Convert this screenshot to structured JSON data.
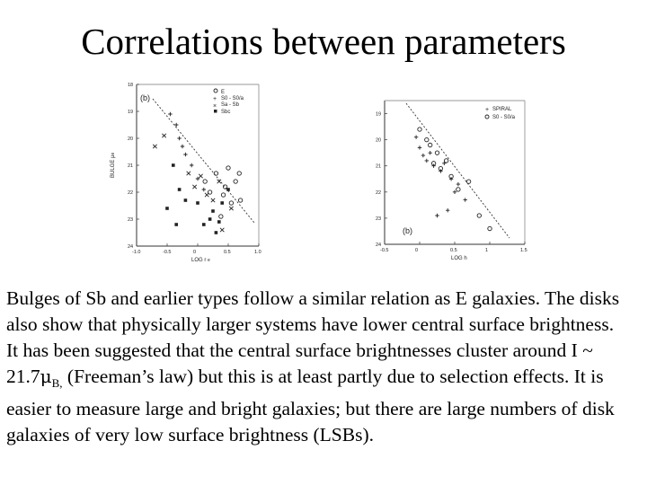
{
  "slide": {
    "title": "Correlations between parameters"
  },
  "left_plot": {
    "panel_label": "(b)",
    "xlabel": "LOG r",
    "xlabel_sub": "e",
    "ylabel": "BULGE μ",
    "ylabel_sub": "e",
    "x_ticks": [
      "-1.0",
      "-0.5",
      "0",
      "0.5",
      "1.0"
    ],
    "y_ticks": [
      "18",
      "19",
      "20",
      "21",
      "22",
      "23",
      "24"
    ],
    "legend": [
      "E",
      "S0 - S0/a",
      "Sa - Sb",
      "Sbc"
    ]
  },
  "right_plot": {
    "panel_label": "(b)",
    "xlabel": "LOG h",
    "x_ticks": [
      "-0.5",
      "0",
      "0.5",
      "1",
      "1.5"
    ],
    "y_ticks": [
      "19",
      "20",
      "21",
      "22",
      "23",
      "24"
    ],
    "legend": [
      "SPIRAL",
      "S0 - S0/a"
    ]
  },
  "chart_data": [
    {
      "type": "scatter",
      "xlabel": "LOG r",
      "ylabel": "BULGE μ",
      "xlim": [
        -1.0,
        1.0
      ],
      "ylim": [
        24,
        18
      ],
      "grid": false,
      "legend_position": "top-right",
      "series": [
        {
          "name": "E",
          "symbol": "circle",
          "x": [
            0.12,
            0.2,
            0.3,
            0.45,
            0.5,
            0.55,
            0.62,
            0.68,
            0.7,
            0.38,
            0.42
          ],
          "y": [
            21.6,
            22.0,
            21.3,
            21.8,
            21.1,
            22.4,
            21.6,
            21.3,
            22.3,
            22.9,
            22.1
          ]
        },
        {
          "name": "S0 - S0/a",
          "symbol": "plus",
          "x": [
            -0.45,
            -0.35,
            -0.25,
            -0.2,
            -0.1,
            0.0,
            0.1,
            -0.3
          ],
          "y": [
            19.1,
            19.5,
            20.3,
            20.6,
            21.0,
            21.5,
            21.9,
            20.0
          ]
        },
        {
          "name": "Sa - Sb",
          "symbol": "cross",
          "x": [
            -0.55,
            -0.15,
            -0.05,
            0.05,
            0.15,
            0.25,
            0.35,
            0.4,
            0.55,
            -0.7
          ],
          "y": [
            19.9,
            21.3,
            21.8,
            21.4,
            22.1,
            22.3,
            21.6,
            23.4,
            22.6,
            20.3
          ]
        },
        {
          "name": "Sbc",
          "symbol": "filled-square",
          "x": [
            -0.4,
            -0.3,
            -0.5,
            -0.35,
            -0.2,
            0.0,
            0.2,
            0.25,
            0.3,
            0.4,
            0.35,
            0.5,
            0.1
          ],
          "y": [
            21.0,
            21.9,
            22.6,
            23.2,
            22.3,
            22.4,
            23.0,
            22.7,
            23.5,
            22.4,
            23.1,
            21.9,
            23.2
          ]
        }
      ]
    },
    {
      "type": "scatter",
      "xlabel": "LOG h",
      "ylabel": "",
      "xlim": [
        -0.5,
        1.5
      ],
      "ylim": [
        24,
        18.5
      ],
      "grid": false,
      "legend_position": "top-right",
      "series": [
        {
          "name": "SPIRAL",
          "symbol": "plus",
          "x": [
            -0.05,
            0.0,
            0.05,
            0.1,
            0.15,
            0.2,
            0.3,
            0.35,
            0.45,
            0.55,
            0.65,
            0.4,
            0.25,
            0.5
          ],
          "y": [
            19.9,
            20.3,
            20.6,
            20.8,
            20.5,
            21.0,
            21.2,
            20.9,
            21.5,
            21.7,
            22.3,
            22.7,
            22.9,
            22.0
          ]
        },
        {
          "name": "S0 - S0/a",
          "symbol": "circle",
          "x": [
            0.0,
            0.1,
            0.15,
            0.25,
            0.3,
            0.38,
            0.45,
            0.55,
            0.7,
            0.85,
            1.0,
            0.2
          ],
          "y": [
            19.6,
            20.0,
            20.2,
            20.5,
            21.1,
            20.8,
            21.4,
            21.9,
            21.6,
            22.9,
            23.4,
            20.9
          ]
        }
      ]
    }
  ],
  "paragraphs": {
    "p1": "Bulges of Sb and earlier types follow a similar relation as E galaxies. The disks also show that physically larger systems have lower central surface brightness.",
    "p2a": "It has been suggested that the central surface brightnesses cluster around I ~ 21.7",
    "p2_mu": "μ",
    "p2_sub": "B,",
    "p2b": " (Freeman’s law) but this is at least partly due to selection effects. It is easier to measure large and bright galaxies; but there are large numbers of disk galaxies of very low surface brightness (LSBs)."
  }
}
